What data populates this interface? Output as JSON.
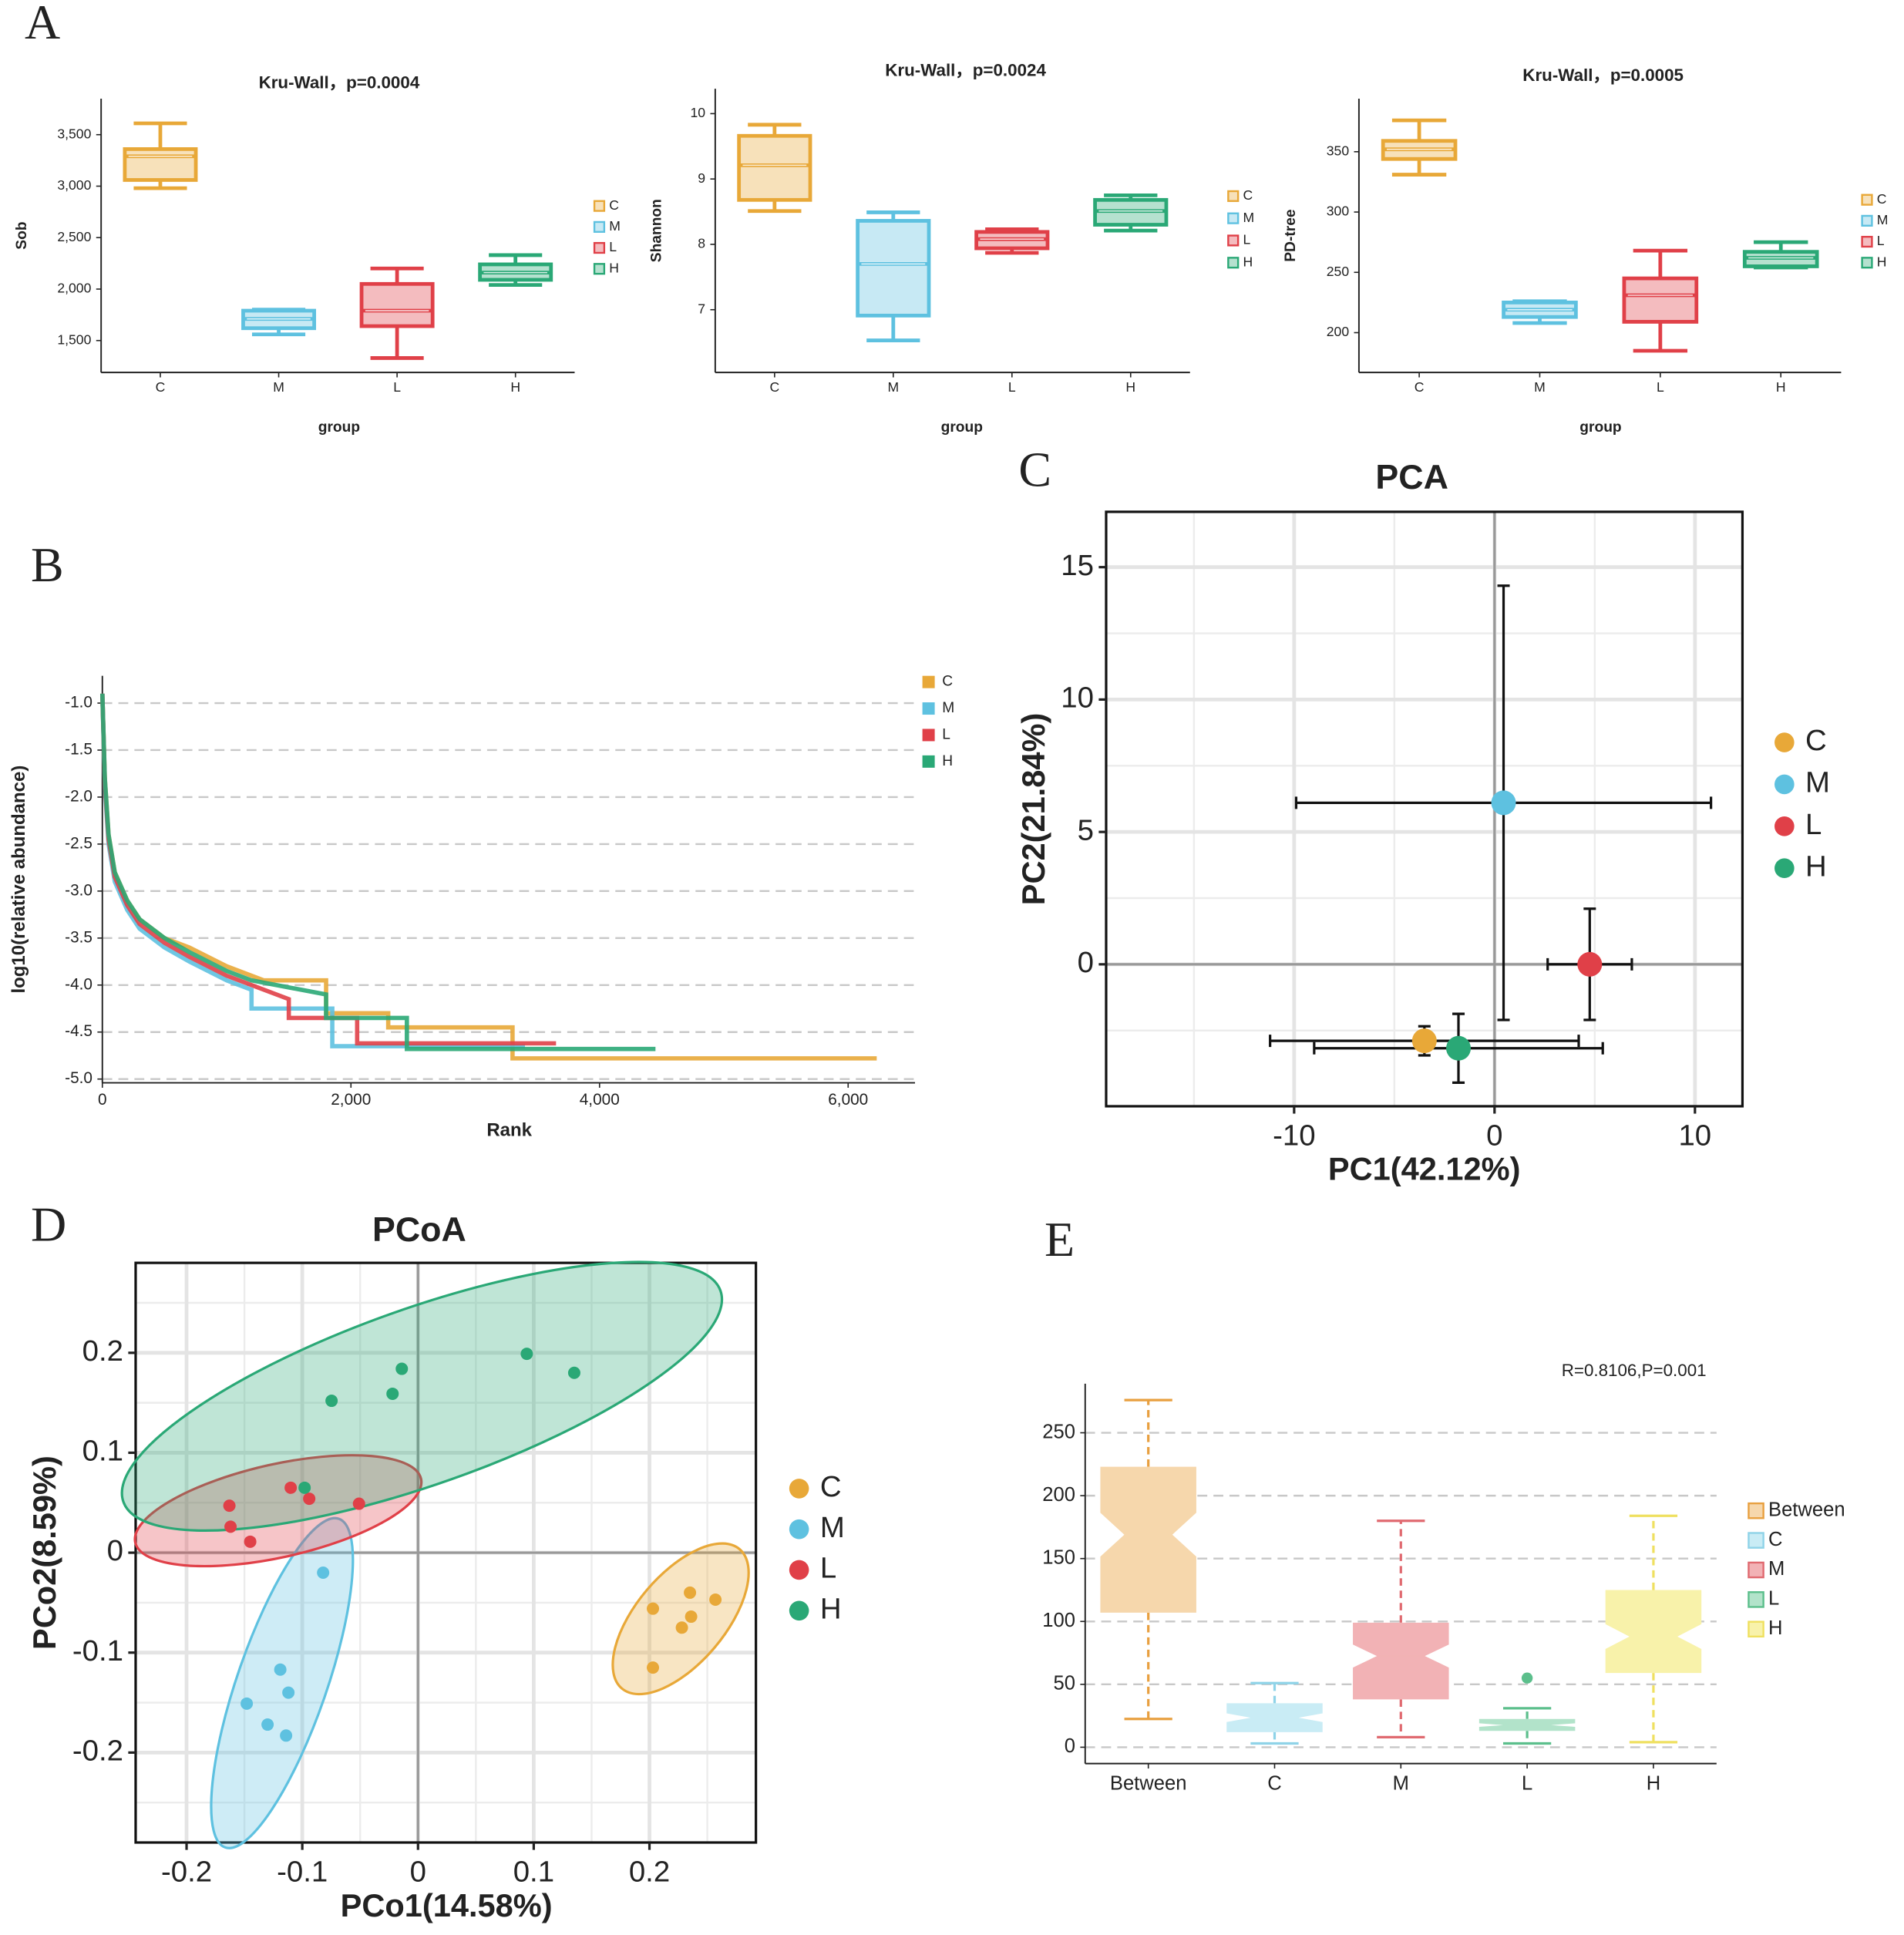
{
  "panel_labels": [
    "A",
    "B",
    "C",
    "D",
    "E"
  ],
  "chart_data": [
    {
      "type": "box",
      "title": "Kru-Wall，p=0.0004",
      "xlabel": "group",
      "ylabel": "Sob",
      "categories": [
        "C",
        "M",
        "L",
        "H"
      ],
      "min": [
        2980,
        1560,
        1330,
        2040
      ],
      "q1": [
        3060,
        1620,
        1640,
        2090
      ],
      "median": [
        3290,
        1710,
        1790,
        2160
      ],
      "q3": [
        3360,
        1790,
        2050,
        2240
      ],
      "max": [
        3610,
        1800,
        2200,
        2330
      ],
      "colors": [
        "#e8a838",
        "#5ec1e0",
        "#e04048",
        "#2aa876"
      ],
      "ylim": [
        1190,
        3850
      ],
      "yticks": [
        {
          "value": 1500,
          "label": "1,500"
        },
        {
          "value": 2000,
          "label": "2,000"
        },
        {
          "value": 2500,
          "label": "2,500"
        },
        {
          "value": 3000,
          "label": "3,000"
        },
        {
          "value": 3500,
          "label": "3,500"
        }
      ],
      "legend": true
    },
    {
      "type": "box",
      "title": "Kru-Wall，p=0.0024",
      "xlabel": "group",
      "ylabel": "Shannon",
      "categories": [
        "C",
        "M",
        "L",
        "H"
      ],
      "min": [
        8.51,
        6.53,
        7.87,
        8.21
      ],
      "q1": [
        8.68,
        6.91,
        7.94,
        8.3
      ],
      "median": [
        9.21,
        7.7,
        8.08,
        8.51
      ],
      "q3": [
        9.66,
        8.36,
        8.19,
        8.68
      ],
      "max": [
        9.83,
        8.49,
        8.23,
        8.75
      ],
      "colors": [
        "#e8a838",
        "#5ec1e0",
        "#e04048",
        "#2aa876"
      ],
      "ylim": [
        6.04,
        10.38
      ],
      "yticks": [
        7,
        8,
        9,
        10
      ],
      "legend": true
    },
    {
      "type": "box",
      "title": "Kru-Wall，p=0.0005",
      "xlabel": "group",
      "ylabel": "PD-tree",
      "categories": [
        "C",
        "M",
        "L",
        "H"
      ],
      "min": [
        331,
        208,
        185,
        254
      ],
      "q1": [
        344,
        213,
        209,
        255
      ],
      "median": [
        352,
        219,
        231,
        262
      ],
      "q3": [
        359,
        225,
        245,
        267
      ],
      "max": [
        376,
        226,
        268,
        275
      ],
      "colors": [
        "#e8a838",
        "#5ec1e0",
        "#e04048",
        "#2aa876"
      ],
      "ylim": [
        167,
        394
      ],
      "yticks": [
        200,
        250,
        300,
        350
      ],
      "legend": true
    },
    {
      "type": "line",
      "xlabel": "Rank",
      "ylabel": "log10(relative abundance)",
      "series": [
        {
          "name": "C",
          "color": "#e8a838",
          "x": [
            0,
            20,
            50,
            100,
            200,
            300,
            500,
            700,
            1000,
            1300,
            1800,
            1800,
            2300,
            2300,
            3300,
            3300,
            6230
          ],
          "values": [
            -0.9,
            -1.8,
            -2.4,
            -2.8,
            -3.1,
            -3.3,
            -3.5,
            -3.6,
            -3.8,
            -3.95,
            -3.95,
            -4.3,
            -4.3,
            -4.45,
            -4.45,
            -4.78,
            -4.78
          ]
        },
        {
          "name": "M",
          "color": "#5ec1e0",
          "x": [
            0,
            20,
            50,
            100,
            200,
            300,
            500,
            700,
            1000,
            1200,
            1200,
            1850,
            1850,
            3400
          ],
          "values": [
            -0.9,
            -1.9,
            -2.5,
            -2.9,
            -3.2,
            -3.4,
            -3.6,
            -3.75,
            -3.95,
            -4.05,
            -4.25,
            -4.25,
            -4.65,
            -4.65
          ]
        },
        {
          "name": "L",
          "color": "#e04048",
          "x": [
            0,
            20,
            50,
            100,
            200,
            300,
            500,
            700,
            1000,
            1500,
            1500,
            2050,
            2050,
            3650
          ],
          "values": [
            -0.9,
            -1.85,
            -2.45,
            -2.85,
            -3.15,
            -3.35,
            -3.55,
            -3.7,
            -3.9,
            -4.15,
            -4.35,
            -4.35,
            -4.62,
            -4.62
          ]
        },
        {
          "name": "H",
          "color": "#2aa876",
          "x": [
            0,
            20,
            50,
            100,
            200,
            300,
            500,
            700,
            1000,
            1200,
            1800,
            1800,
            2450,
            2450,
            4450
          ],
          "values": [
            -0.9,
            -1.8,
            -2.4,
            -2.8,
            -3.1,
            -3.3,
            -3.5,
            -3.65,
            -3.85,
            -3.95,
            -4.1,
            -4.35,
            -4.35,
            -4.68,
            -4.68
          ]
        }
      ],
      "xlim": [
        0,
        6538
      ],
      "xticks": [
        0,
        {
          "value": 2000,
          "label": "2,000"
        },
        {
          "value": 4000,
          "label": "4,000"
        },
        {
          "value": 6000,
          "label": "6,000"
        }
      ],
      "ylim": [
        -5.04,
        -0.71
      ],
      "yticks": [
        {
          "value": -1,
          "label": "-1.0"
        },
        -1.5,
        {
          "value": -2,
          "label": "-2.0"
        },
        -2.5,
        {
          "value": -3,
          "label": "-3.0"
        },
        -3.5,
        {
          "value": -4,
          "label": "-4.0"
        },
        -4.5,
        {
          "value": -5,
          "label": "-5.0"
        }
      ],
      "grid": true,
      "grid_style": "dashed",
      "legend": true
    },
    {
      "type": "scatter",
      "title": "PCA",
      "xlabel": "PC1(42.12%)",
      "ylabel": "PC2(21.84%)",
      "series": [
        {
          "name": "C",
          "color": "#e8a838",
          "x": [
            -3.5
          ],
          "values": [
            -2.89
          ],
          "xerr": [
            7.7
          ],
          "yerr": [
            0.55
          ]
        },
        {
          "name": "M",
          "color": "#5ec1e0",
          "x": [
            0.45
          ],
          "values": [
            6.1
          ],
          "xerr": [
            10.35
          ],
          "yerr": [
            8.2
          ]
        },
        {
          "name": "L",
          "color": "#e04048",
          "x": [
            4.75
          ],
          "values": [
            0
          ],
          "xerr": [
            2.1
          ],
          "yerr": [
            2.1
          ]
        },
        {
          "name": "H",
          "color": "#2aa876",
          "x": [
            -1.8
          ],
          "values": [
            -3.17
          ],
          "xerr": [
            7.2
          ],
          "yerr": [
            1.3
          ]
        }
      ],
      "xlim": [
        -19.38,
        12.37
      ],
      "xticks": [
        -10,
        0,
        10
      ],
      "ylim": [
        -5.36,
        17.09
      ],
      "yticks": [
        0,
        5,
        10,
        15
      ],
      "grid": true,
      "minor_grid": true,
      "zero_lines": true,
      "frame": true,
      "legend": true
    },
    {
      "type": "scatter",
      "title": "PCoA",
      "xlabel": "PCo1(14.58%)",
      "ylabel": "PCo2(8.59%)",
      "series": [
        {
          "name": "C",
          "color": "#e8a838",
          "x": [
            0.235,
            0.257,
            0.203,
            0.236,
            0.228,
            0.203
          ],
          "values": [
            -0.04,
            -0.047,
            -0.056,
            -0.064,
            -0.075,
            -0.115
          ]
        },
        {
          "name": "M",
          "color": "#5ec1e0",
          "x": [
            -0.082,
            -0.119,
            -0.112,
            -0.148,
            -0.13,
            -0.114
          ],
          "values": [
            -0.02,
            -0.117,
            -0.14,
            -0.151,
            -0.172,
            -0.183
          ]
        },
        {
          "name": "L",
          "color": "#e04048",
          "x": [
            -0.163,
            -0.162,
            -0.145,
            -0.11,
            -0.094,
            -0.051
          ],
          "values": [
            0.047,
            0.026,
            0.011,
            0.065,
            0.054,
            0.049
          ]
        },
        {
          "name": "H",
          "color": "#2aa876",
          "x": [
            -0.0747,
            -0.014,
            -0.022,
            0.094,
            0.135,
            -0.098
          ],
          "values": [
            0.152,
            0.184,
            0.159,
            0.199,
            0.18,
            0.065
          ]
        }
      ],
      "xlim": [
        -0.244,
        0.292
      ],
      "xticks": [
        -0.2,
        -0.1,
        0,
        0.1,
        0.2
      ],
      "ylim": [
        -0.29,
        0.29
      ],
      "yticks": [
        -0.2,
        -0.1,
        0,
        0.1,
        0.2
      ],
      "grid": true,
      "minor_grid": true,
      "zero_lines": true,
      "frame": true,
      "ellipse": true,
      "legend": true
    },
    {
      "type": "box",
      "annotation": "R=0.8106,P=0.001",
      "categories": [
        "Between",
        "C",
        "M",
        "L",
        "H"
      ],
      "min": [
        22.5,
        3,
        8,
        3,
        4
      ],
      "q1": [
        107,
        12,
        38,
        13,
        59
      ],
      "median": [
        169,
        23.5,
        72.5,
        17.6,
        88
      ],
      "q3": [
        223,
        35,
        99,
        22.5,
        125
      ],
      "max": [
        276,
        51,
        180,
        31,
        184
      ],
      "outliers": [
        [],
        [],
        [],
        [
          55
        ],
        []
      ],
      "colors": [
        "#e8a040",
        "#8fd3e8",
        "#e06a70",
        "#5cbf8c",
        "#efe060"
      ],
      "fills": [
        "#f6d7ac",
        "#c9ecf5",
        "#f2b2b5",
        "#b2e3ca",
        "#f8f2aa"
      ],
      "ylim": [
        -13,
        289
      ],
      "yticks": [
        0,
        50,
        100,
        150,
        200,
        250
      ],
      "grid": true,
      "grid_style": "dashed",
      "notch": true,
      "whisker_style": "dashed",
      "legend": true
    }
  ]
}
